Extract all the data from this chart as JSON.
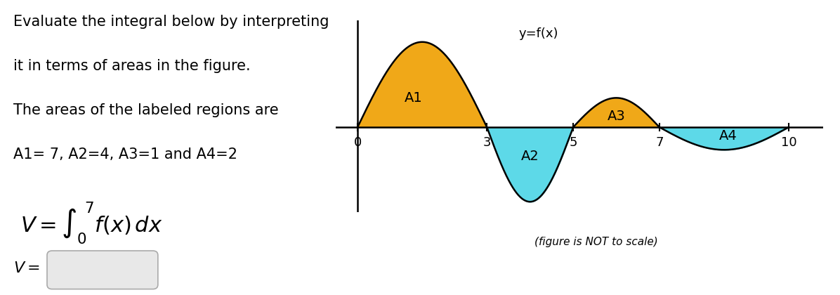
{
  "text_lines": [
    "Evaluate the integral below by interpreting",
    "it in terms of areas in the figure.",
    "The areas of the labeled regions are",
    "A1= 7, A2=4, A3=1 and A4=2"
  ],
  "fig_label": "(figure is NOT to scale)",
  "yfx_label": "y=f(x)",
  "x_ticks": [
    0,
    3,
    5,
    7,
    10
  ],
  "color_above": "#f0a818",
  "color_below": "#5dd9e8",
  "bg_color": "#ffffff",
  "font_size_text": 15,
  "font_size_labels": 14
}
